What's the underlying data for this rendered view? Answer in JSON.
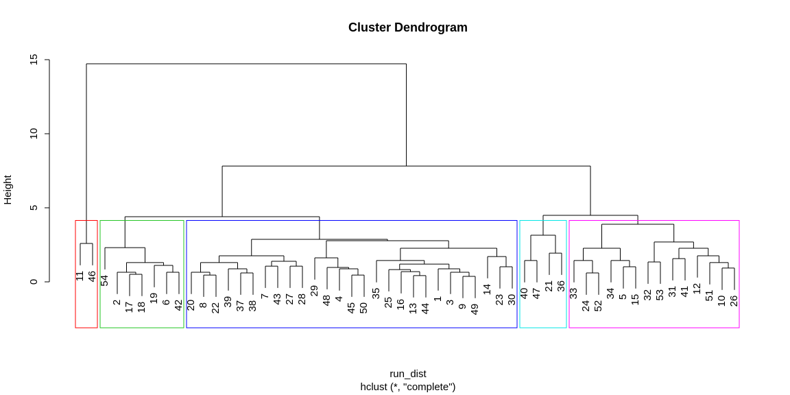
{
  "chart_data": {
    "type": "dendrogram",
    "title": "Cluster Dendrogram",
    "xlabel": "run_dist",
    "subtitle": "hclust (*, \"complete\")",
    "ylabel": "Height",
    "ylim": [
      0,
      15
    ],
    "yticks": [
      0,
      5,
      10,
      15
    ],
    "rect_colors": [
      "#ff0000",
      "#22c522",
      "#0000ff",
      "#00e5e5",
      "#ff00ff"
    ],
    "tree": {
      "height": 14.72,
      "children": [
        {
          "height": 2.59,
          "children": [
            {
              "label": "11"
            },
            {
              "label": "46"
            }
          ]
        },
        {
          "height": 7.82,
          "children": [
            {
              "height": 4.4,
              "children": [
                {
                  "height": 2.31,
                  "children": [
                    {
                      "label": "54"
                    },
                    {
                      "height": 1.3,
                      "children": [
                        {
                          "height": 0.65,
                          "children": [
                            {
                              "label": "2"
                            },
                            {
                              "height": 0.51,
                              "children": [
                                {
                                  "label": "17"
                                },
                                {
                                  "label": "18"
                                }
                              ]
                            }
                          ]
                        },
                        {
                          "height": 1.11,
                          "children": [
                            {
                              "label": "19"
                            },
                            {
                              "height": 0.65,
                              "children": [
                                {
                                  "label": "6"
                                },
                                {
                                  "label": "42"
                                }
                              ]
                            }
                          ]
                        }
                      ]
                    }
                  ]
                },
                {
                  "height": 2.87,
                  "children": [
                    {
                      "height": 1.76,
                      "children": [
                        {
                          "height": 1.3,
                          "children": [
                            {
                              "height": 0.65,
                              "children": [
                                {
                                  "label": "20"
                                },
                                {
                                  "height": 0.46,
                                  "children": [
                                    {
                                      "label": "8"
                                    },
                                    {
                                      "label": "22"
                                    }
                                  ]
                                }
                              ]
                            },
                            {
                              "height": 0.88,
                              "children": [
                                {
                                  "label": "39"
                                },
                                {
                                  "height": 0.6,
                                  "children": [
                                    {
                                      "label": "37"
                                    },
                                    {
                                      "label": "38"
                                    }
                                  ]
                                }
                              ]
                            }
                          ]
                        },
                        {
                          "height": 1.39,
                          "children": [
                            {
                              "height": 1.06,
                              "children": [
                                {
                                  "label": "7"
                                },
                                {
                                  "label": "43"
                                }
                              ]
                            },
                            {
                              "height": 1.06,
                              "children": [
                                {
                                  "label": "27"
                                },
                                {
                                  "label": "28"
                                }
                              ]
                            }
                          ]
                        }
                      ]
                    },
                    {
                      "height": 2.78,
                      "children": [
                        {
                          "height": 1.62,
                          "children": [
                            {
                              "label": "29"
                            },
                            {
                              "height": 0.97,
                              "children": [
                                {
                                  "label": "48"
                                },
                                {
                                  "height": 0.88,
                                  "children": [
                                    {
                                      "label": "4"
                                    },
                                    {
                                      "height": 0.46,
                                      "children": [
                                        {
                                          "label": "45"
                                        },
                                        {
                                          "label": "50"
                                        }
                                      ]
                                    }
                                  ]
                                }
                              ]
                            }
                          ]
                        },
                        {
                          "height": 2.27,
                          "children": [
                            {
                              "height": 1.44,
                              "children": [
                                {
                                  "label": "35"
                                },
                                {
                                  "height": 1.2,
                                  "children": [
                                    {
                                      "height": 0.83,
                                      "children": [
                                        {
                                          "label": "25"
                                        },
                                        {
                                          "height": 0.69,
                                          "children": [
                                            {
                                              "label": "16"
                                            },
                                            {
                                              "height": 0.42,
                                              "children": [
                                                {
                                                  "label": "13"
                                                },
                                                {
                                                  "label": "44"
                                                }
                                              ]
                                            }
                                          ]
                                        }
                                      ]
                                    },
                                    {
                                      "height": 0.88,
                                      "children": [
                                        {
                                          "label": "1"
                                        },
                                        {
                                          "height": 0.65,
                                          "children": [
                                            {
                                              "label": "3"
                                            },
                                            {
                                              "height": 0.37,
                                              "children": [
                                                {
                                                  "label": "9"
                                                },
                                                {
                                                  "label": "49"
                                                }
                                              ]
                                            }
                                          ]
                                        }
                                      ]
                                    }
                                  ]
                                }
                              ]
                            },
                            {
                              "height": 1.71,
                              "children": [
                                {
                                  "label": "14"
                                },
                                {
                                  "height": 1.02,
                                  "children": [
                                    {
                                      "label": "23"
                                    },
                                    {
                                      "label": "30"
                                    }
                                  ]
                                }
                              ]
                            }
                          ]
                        }
                      ]
                    }
                  ]
                }
              ]
            },
            {
              "height": 4.49,
              "children": [
                {
                  "height": 3.15,
                  "children": [
                    {
                      "height": 1.44,
                      "children": [
                        {
                          "label": "40"
                        },
                        {
                          "label": "47"
                        }
                      ]
                    },
                    {
                      "height": 1.94,
                      "children": [
                        {
                          "label": "21"
                        },
                        {
                          "label": "36"
                        }
                      ]
                    }
                  ]
                },
                {
                  "height": 3.89,
                  "children": [
                    {
                      "height": 2.27,
                      "children": [
                        {
                          "height": 1.44,
                          "children": [
                            {
                              "label": "33"
                            },
                            {
                              "height": 0.6,
                              "children": [
                                {
                                  "label": "24"
                                },
                                {
                                  "label": "52"
                                }
                              ]
                            }
                          ]
                        },
                        {
                          "height": 1.44,
                          "children": [
                            {
                              "label": "34"
                            },
                            {
                              "height": 1.02,
                              "children": [
                                {
                                  "label": "5"
                                },
                                {
                                  "label": "15"
                                }
                              ]
                            }
                          ]
                        }
                      ]
                    },
                    {
                      "height": 2.69,
                      "children": [
                        {
                          "height": 1.34,
                          "children": [
                            {
                              "label": "32"
                            },
                            {
                              "label": "53"
                            }
                          ]
                        },
                        {
                          "height": 2.27,
                          "children": [
                            {
                              "height": 1.57,
                              "children": [
                                {
                                  "label": "31"
                                },
                                {
                                  "label": "41"
                                }
                              ]
                            },
                            {
                              "height": 1.76,
                              "children": [
                                {
                                  "label": "12"
                                },
                                {
                                  "height": 1.3,
                                  "children": [
                                    {
                                      "label": "51"
                                    },
                                    {
                                      "height": 0.93,
                                      "children": [
                                        {
                                          "label": "10"
                                        },
                                        {
                                          "label": "26"
                                        }
                                      ]
                                    }
                                  ]
                                }
                              ]
                            }
                          ]
                        }
                      ]
                    }
                  ]
                }
              ]
            }
          ]
        }
      ]
    }
  }
}
